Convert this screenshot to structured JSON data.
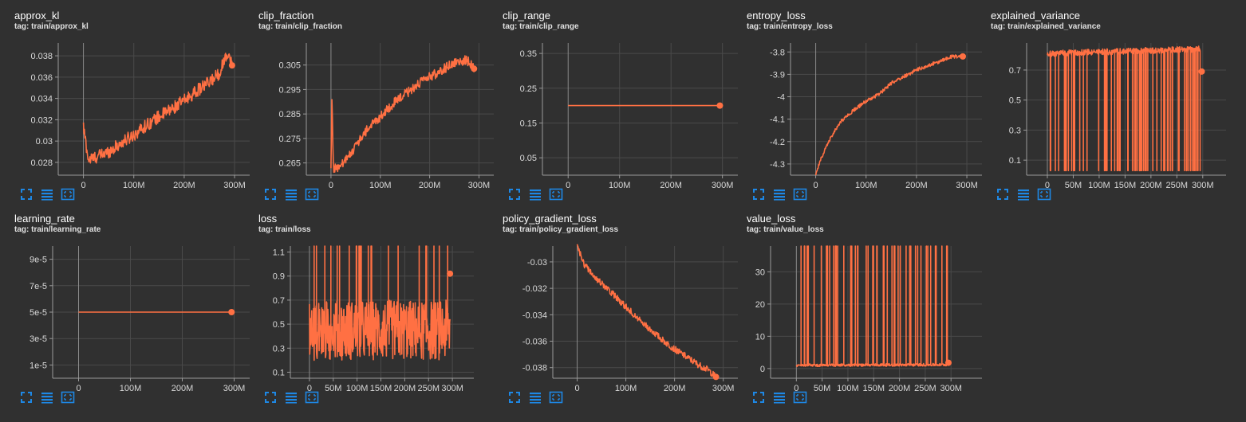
{
  "theme": {
    "background": "#303030",
    "series_color": "#ff7043",
    "grid_color": "#4a4a4a",
    "axis_color": "#9a9a9a",
    "icon_color": "#1e88e5"
  },
  "toolbar_icons": [
    "fullscreen-icon",
    "data-table-icon",
    "fit-domain-icon"
  ],
  "cards": [
    {
      "title": "approx_kl",
      "tag": "tag: train/approx_kl"
    },
    {
      "title": "clip_fraction",
      "tag": "tag: train/clip_fraction"
    },
    {
      "title": "clip_range",
      "tag": "tag: train/clip_range"
    },
    {
      "title": "entropy_loss",
      "tag": "tag: train/entropy_loss"
    },
    {
      "title": "explained_variance",
      "tag": "tag: train/explained_variance"
    },
    {
      "title": "learning_rate",
      "tag": "tag: train/learning_rate"
    },
    {
      "title": "loss",
      "tag": "tag: train/loss"
    },
    {
      "title": "policy_gradient_loss",
      "tag": "tag: train/policy_gradient_loss"
    },
    {
      "title": "value_loss",
      "tag": "tag: train/value_loss"
    }
  ],
  "chart_data": [
    {
      "type": "line",
      "title": "approx_kl",
      "xlim": [
        -50,
        330
      ],
      "ylim": [
        0.0268,
        0.0392
      ],
      "xticks": [
        {
          "v": 0,
          "label": "0"
        },
        {
          "v": 100,
          "label": "100M"
        },
        {
          "v": 200,
          "label": "200M"
        },
        {
          "v": 300,
          "label": "300M"
        }
      ],
      "yticks": [
        {
          "v": 0.028,
          "label": "0.028"
        },
        {
          "v": 0.03,
          "label": "0.03"
        },
        {
          "v": 0.032,
          "label": "0.032"
        },
        {
          "v": 0.034,
          "label": "0.034"
        },
        {
          "v": 0.036,
          "label": "0.036"
        },
        {
          "v": 0.038,
          "label": "0.038"
        }
      ],
      "series": [
        {
          "x": [
            0,
            10,
            25,
            50,
            75,
            100,
            125,
            150,
            175,
            200,
            225,
            250,
            270,
            285,
            295
          ],
          "y": [
            0.0313,
            0.0282,
            0.0285,
            0.029,
            0.0298,
            0.0306,
            0.0315,
            0.0323,
            0.033,
            0.0338,
            0.0347,
            0.0355,
            0.0364,
            0.0383,
            0.0372
          ],
          "noise": 0.0006
        }
      ],
      "last": {
        "x": 295,
        "y": 0.0371
      }
    },
    {
      "type": "line",
      "title": "clip_fraction",
      "xlim": [
        -50,
        330
      ],
      "ylim": [
        0.26,
        0.314
      ],
      "xticks": [
        {
          "v": 0,
          "label": "0"
        },
        {
          "v": 100,
          "label": "100M"
        },
        {
          "v": 200,
          "label": "200M"
        },
        {
          "v": 300,
          "label": "300M"
        }
      ],
      "yticks": [
        {
          "v": 0.265,
          "label": "0.265"
        },
        {
          "v": 0.275,
          "label": "0.275"
        },
        {
          "v": 0.285,
          "label": "0.285"
        },
        {
          "v": 0.295,
          "label": "0.295"
        },
        {
          "v": 0.305,
          "label": "0.305"
        }
      ],
      "series": [
        {
          "x": [
            0,
            2,
            5,
            15,
            30,
            50,
            75,
            100,
            125,
            150,
            175,
            200,
            225,
            250,
            275,
            290
          ],
          "y": [
            0.262,
            0.292,
            0.263,
            0.263,
            0.266,
            0.272,
            0.279,
            0.284,
            0.289,
            0.293,
            0.297,
            0.3,
            0.303,
            0.306,
            0.307,
            0.304
          ],
          "noise": 0.002
        }
      ],
      "last": {
        "x": 290,
        "y": 0.3035
      }
    },
    {
      "type": "line",
      "title": "clip_range",
      "xlim": [
        -50,
        330
      ],
      "ylim": [
        0.0,
        0.38
      ],
      "xticks": [
        {
          "v": 0,
          "label": "0"
        },
        {
          "v": 100,
          "label": "100M"
        },
        {
          "v": 200,
          "label": "200M"
        },
        {
          "v": 300,
          "label": "300M"
        }
      ],
      "yticks": [
        {
          "v": 0.05,
          "label": "0.05"
        },
        {
          "v": 0.15,
          "label": "0.15"
        },
        {
          "v": 0.25,
          "label": "0.25"
        },
        {
          "v": 0.35,
          "label": "0.35"
        }
      ],
      "series": [
        {
          "x": [
            0,
            295
          ],
          "y": [
            0.2,
            0.2
          ],
          "noise": 0
        }
      ],
      "last": {
        "x": 295,
        "y": 0.2
      }
    },
    {
      "type": "line",
      "title": "entropy_loss",
      "xlim": [
        -50,
        330
      ],
      "ylim": [
        -4.35,
        -3.76
      ],
      "xticks": [
        {
          "v": 0,
          "label": "0"
        },
        {
          "v": 100,
          "label": "100M"
        },
        {
          "v": 200,
          "label": "200M"
        },
        {
          "v": 300,
          "label": "300M"
        }
      ],
      "yticks": [
        {
          "v": -4.3,
          "label": "-4.3"
        },
        {
          "v": -4.2,
          "label": "-4.2"
        },
        {
          "v": -4.1,
          "label": "-4.1"
        },
        {
          "v": -4.0,
          "label": "-4"
        },
        {
          "v": -3.9,
          "label": "-3.9"
        },
        {
          "v": -3.8,
          "label": "-3.8"
        }
      ],
      "series": [
        {
          "x": [
            0,
            10,
            25,
            50,
            75,
            100,
            125,
            150,
            175,
            200,
            225,
            250,
            270,
            290
          ],
          "y": [
            -4.35,
            -4.28,
            -4.2,
            -4.11,
            -4.06,
            -4.02,
            -3.99,
            -3.94,
            -3.91,
            -3.88,
            -3.86,
            -3.84,
            -3.82,
            -3.82
          ],
          "noise": 0.008
        }
      ],
      "last": {
        "x": 292,
        "y": -3.82
      }
    },
    {
      "type": "line",
      "title": "explained_variance",
      "xlim": [
        -40,
        345
      ],
      "ylim": [
        0.0,
        0.88
      ],
      "xticks": [
        {
          "v": 0,
          "label": "0"
        },
        {
          "v": 50,
          "label": "50M"
        },
        {
          "v": 100,
          "label": "100M"
        },
        {
          "v": 150,
          "label": "150M"
        },
        {
          "v": 200,
          "label": "200M"
        },
        {
          "v": 250,
          "label": "250M"
        },
        {
          "v": 300,
          "label": "300M"
        }
      ],
      "yticks": [
        {
          "v": 0.1,
          "label": "0.1"
        },
        {
          "v": 0.3,
          "label": "0.3"
        },
        {
          "v": 0.5,
          "label": "0.5"
        },
        {
          "v": 0.7,
          "label": "0.7"
        }
      ],
      "series": [
        {
          "x": [
            0,
            295
          ],
          "y": [
            0.81,
            0.84
          ],
          "noise": 0.02,
          "spike_to": 0.03,
          "spike_prob": 0.16,
          "point_count": 420
        }
      ],
      "last": {
        "x": 298,
        "y": 0.69
      }
    },
    {
      "type": "line",
      "title": "learning_rate",
      "xlim": [
        -50,
        330
      ],
      "ylim": [
        0.0,
        0.0001
      ],
      "xticks": [
        {
          "v": 0,
          "label": "0"
        },
        {
          "v": 100,
          "label": "100M"
        },
        {
          "v": 200,
          "label": "200M"
        },
        {
          "v": 300,
          "label": "300M"
        }
      ],
      "yticks": [
        {
          "v": 1e-05,
          "label": "1e-5"
        },
        {
          "v": 3e-05,
          "label": "3e-5"
        },
        {
          "v": 5e-05,
          "label": "5e-5"
        },
        {
          "v": 7e-05,
          "label": "7e-5"
        },
        {
          "v": 9e-05,
          "label": "9e-5"
        }
      ],
      "series": [
        {
          "x": [
            0,
            295
          ],
          "y": [
            5e-05,
            5e-05
          ],
          "noise": 0
        }
      ],
      "last": {
        "x": 295,
        "y": 5e-05
      }
    },
    {
      "type": "line",
      "title": "loss",
      "xlim": [
        -40,
        345
      ],
      "ylim": [
        0.05,
        1.15
      ],
      "xticks": [
        {
          "v": 0,
          "label": "0"
        },
        {
          "v": 50,
          "label": "50M"
        },
        {
          "v": 100,
          "label": "100M"
        },
        {
          "v": 150,
          "label": "150M"
        },
        {
          "v": 200,
          "label": "200M"
        },
        {
          "v": 250,
          "label": "250M"
        },
        {
          "v": 300,
          "label": "300M"
        }
      ],
      "yticks": [
        {
          "v": 0.1,
          "label": "0.1"
        },
        {
          "v": 0.3,
          "label": "0.3"
        },
        {
          "v": 0.5,
          "label": "0.5"
        },
        {
          "v": 0.7,
          "label": "0.7"
        },
        {
          "v": 0.9,
          "label": "0.9"
        },
        {
          "v": 1.1,
          "label": "1.1"
        }
      ],
      "series": [
        {
          "x": [
            0,
            295
          ],
          "y": [
            0.45,
            0.45
          ],
          "noise": 0.25,
          "spike_to": 1.15,
          "spike_prob": 0.06,
          "point_count": 420
        }
      ],
      "last": {
        "x": 295,
        "y": 0.92
      }
    },
    {
      "type": "line",
      "title": "policy_gradient_loss",
      "xlim": [
        -50,
        330
      ],
      "ylim": [
        -0.0388,
        -0.0288
      ],
      "xticks": [
        {
          "v": 0,
          "label": "0"
        },
        {
          "v": 100,
          "label": "100M"
        },
        {
          "v": 200,
          "label": "200M"
        },
        {
          "v": 300,
          "label": "300M"
        }
      ],
      "yticks": [
        {
          "v": -0.038,
          "label": "-0.038"
        },
        {
          "v": -0.036,
          "label": "-0.036"
        },
        {
          "v": -0.034,
          "label": "-0.034"
        },
        {
          "v": -0.032,
          "label": "-0.032"
        },
        {
          "v": -0.03,
          "label": "-0.03"
        }
      ],
      "series": [
        {
          "x": [
            0,
            15,
            40,
            75,
            100,
            125,
            150,
            175,
            200,
            225,
            250,
            270,
            285
          ],
          "y": [
            -0.0288,
            -0.0302,
            -0.0313,
            -0.0325,
            -0.0334,
            -0.0343,
            -0.0351,
            -0.0359,
            -0.0366,
            -0.0372,
            -0.0378,
            -0.0382,
            -0.0387
          ],
          "noise": 0.00025
        }
      ],
      "last": {
        "x": 285,
        "y": -0.0387
      }
    },
    {
      "type": "line",
      "title": "value_loss",
      "xlim": [
        -50,
        360
      ],
      "ylim": [
        -3,
        38
      ],
      "xticks": [
        {
          "v": 0,
          "label": "0"
        },
        {
          "v": 50,
          "label": "50M"
        },
        {
          "v": 100,
          "label": "100M"
        },
        {
          "v": 150,
          "label": "150M"
        },
        {
          "v": 200,
          "label": "200M"
        },
        {
          "v": 250,
          "label": "250M"
        },
        {
          "v": 300,
          "label": "300M"
        }
      ],
      "yticks": [
        {
          "v": 0,
          "label": "0"
        },
        {
          "v": 10,
          "label": "10"
        },
        {
          "v": 20,
          "label": "20"
        },
        {
          "v": 30,
          "label": "30"
        }
      ],
      "series": [
        {
          "x": [
            0,
            295
          ],
          "y": [
            1.0,
            1.2
          ],
          "noise": 0.4,
          "spike_to": 38,
          "spike_prob": 0.08,
          "point_count": 420
        }
      ],
      "last": {
        "x": 295,
        "y": 1.8
      }
    }
  ]
}
